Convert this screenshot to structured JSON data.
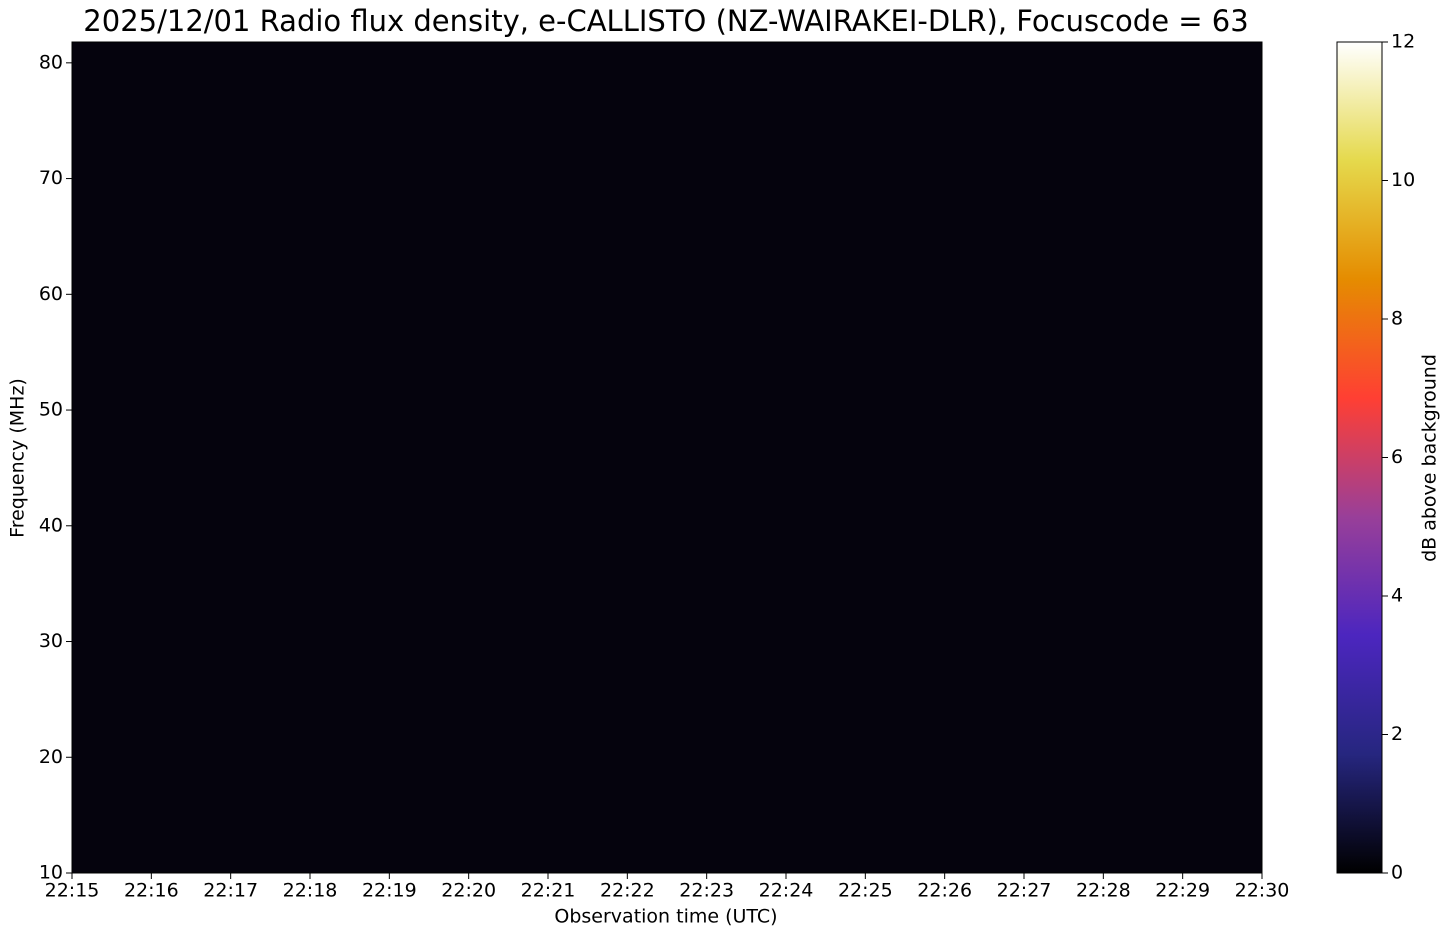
{
  "chart_data": {
    "type": "spectrogram",
    "title": "2025/12/01 Radio flux density, e-CALLISTO (NZ-WAIRAKEI-DLR), Focuscode = 63",
    "x_label": "Observation time (UTC)",
    "y_label": "Frequency (MHz)",
    "xlim": [
      "22:15",
      "22:30"
    ],
    "xticks": [
      "22:15",
      "22:16",
      "22:17",
      "22:18",
      "22:19",
      "22:20",
      "22:21",
      "22:22",
      "22:23",
      "22:24",
      "22:25",
      "22:26",
      "22:27",
      "22:28",
      "22:29",
      "22:30"
    ],
    "ylim": [
      10,
      81.8
    ],
    "yticks": [
      10,
      20,
      30,
      40,
      50,
      60,
      70,
      80
    ],
    "colorbar": {
      "label": "dB above background",
      "lim": [
        0,
        12
      ],
      "ticks": [
        0,
        2,
        4,
        6,
        8,
        10,
        12
      ],
      "colormap": [
        "#000000",
        "#26267f",
        "#4c26bf",
        "#993f99",
        "#ff3f33",
        "#e58c00",
        "#e5d94c",
        "#ffffff"
      ]
    }
  }
}
